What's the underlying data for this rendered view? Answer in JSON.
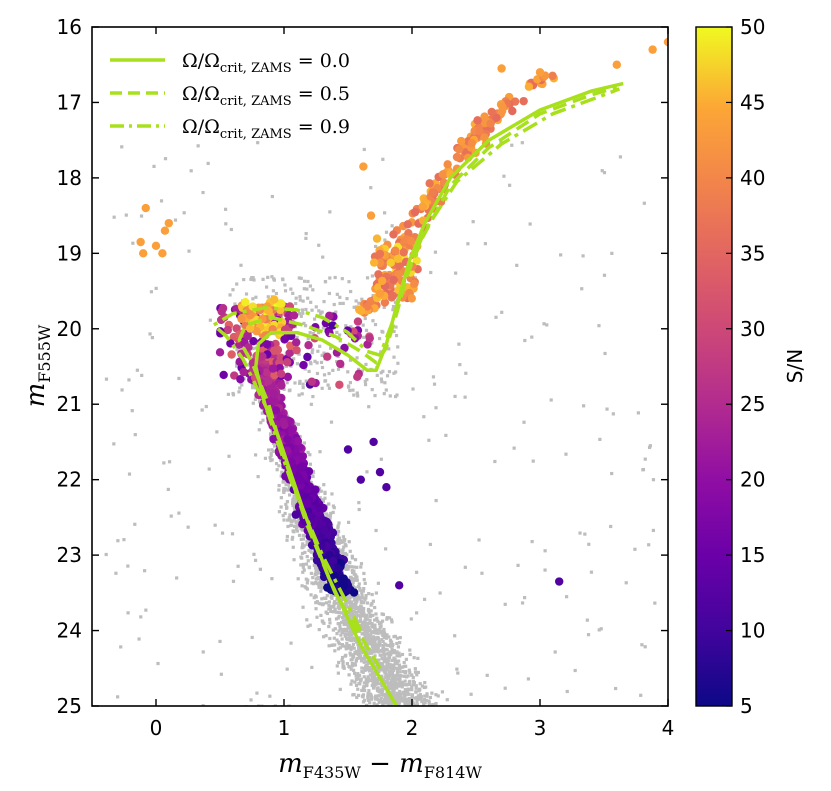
{
  "chart_data": {
    "type": "scatter",
    "xlabel_main": "m",
    "xlabel_sub": "F435W",
    "xlabel_minus": " − ",
    "xlabel_main2": "m",
    "xlabel_sub2": "F814W",
    "ylabel_main": "m",
    "ylabel_sub": "F555W",
    "xlim": [
      -0.5,
      4.0
    ],
    "ylim": [
      25,
      16
    ],
    "xticks": [
      0,
      1,
      2,
      3,
      4
    ],
    "yticks": [
      16,
      17,
      18,
      19,
      20,
      21,
      22,
      23,
      24,
      25
    ],
    "xtick_labels": [
      "0",
      "1",
      "2",
      "3",
      "4"
    ],
    "ytick_labels": [
      "16",
      "17",
      "18",
      "19",
      "20",
      "21",
      "22",
      "23",
      "24",
      "25"
    ],
    "colorbar": {
      "label": "S/N",
      "range": [
        5,
        50
      ],
      "ticks": [
        5,
        10,
        15,
        20,
        25,
        30,
        35,
        40,
        45,
        50
      ],
      "tick_labels": [
        "5",
        "10",
        "15",
        "20",
        "25",
        "30",
        "35",
        "40",
        "45",
        "50"
      ],
      "colormap": "plasma"
    },
    "legend": {
      "placement": "top-left",
      "entries": [
        {
          "label": "Ω/Ω",
          "sub": "crit, ZAMS",
          "value": " = 0.0",
          "style": "solid"
        },
        {
          "label": "Ω/Ω",
          "sub": "crit, ZAMS",
          "value": " = 0.5",
          "style": "dashed"
        },
        {
          "label": "Ω/Ω",
          "sub": "crit, ZAMS",
          "value": " = 0.9",
          "style": "dashdot"
        }
      ]
    },
    "isochrone_color": "#a8e01c",
    "background_color": "#bdbdbd",
    "series": [
      {
        "name": "Ω/Ω_crit,ZAMS = 0.0",
        "style": "solid",
        "points": [
          [
            1.88,
            25.0
          ],
          [
            1.6,
            24.2
          ],
          [
            1.35,
            23.3
          ],
          [
            1.15,
            22.4
          ],
          [
            0.95,
            21.4
          ],
          [
            0.85,
            21.0
          ],
          [
            0.78,
            20.5
          ],
          [
            0.8,
            20.2
          ],
          [
            0.9,
            20.05
          ],
          [
            1.1,
            20.05
          ],
          [
            1.3,
            20.15
          ],
          [
            1.5,
            20.35
          ],
          [
            1.65,
            20.55
          ],
          [
            1.72,
            20.55
          ],
          [
            1.8,
            20.2
          ],
          [
            1.88,
            19.7
          ],
          [
            1.98,
            19.1
          ],
          [
            2.1,
            18.6
          ],
          [
            2.3,
            18.0
          ],
          [
            2.6,
            17.5
          ],
          [
            3.0,
            17.1
          ],
          [
            3.4,
            16.85
          ],
          [
            3.65,
            16.75
          ]
        ]
      },
      {
        "name": "Ω/Ω_crit,ZAMS = 0.5",
        "style": "dashed",
        "points": [
          [
            1.75,
            24.5
          ],
          [
            1.4,
            23.5
          ],
          [
            1.18,
            22.6
          ],
          [
            1.0,
            21.7
          ],
          [
            0.88,
            21.0
          ],
          [
            0.75,
            20.45
          ],
          [
            0.65,
            20.15
          ],
          [
            0.7,
            19.95
          ],
          [
            0.9,
            19.85
          ],
          [
            1.15,
            19.95
          ],
          [
            1.4,
            20.1
          ],
          [
            1.6,
            20.3
          ],
          [
            1.72,
            20.45
          ],
          [
            1.8,
            20.25
          ],
          [
            1.88,
            19.8
          ],
          [
            1.96,
            19.3
          ],
          [
            2.08,
            18.8
          ],
          [
            2.3,
            18.1
          ],
          [
            2.6,
            17.6
          ],
          [
            3.0,
            17.15
          ],
          [
            3.4,
            16.9
          ],
          [
            3.6,
            16.8
          ]
        ]
      },
      {
        "name": "Ω/Ω_crit,ZAMS = 0.9",
        "style": "dashdot",
        "points": [
          [
            1.6,
            24.0
          ],
          [
            1.3,
            23.0
          ],
          [
            1.05,
            22.0
          ],
          [
            0.85,
            21.0
          ],
          [
            0.68,
            20.4
          ],
          [
            0.55,
            20.1
          ],
          [
            0.45,
            19.95
          ],
          [
            0.6,
            19.8
          ],
          [
            0.85,
            19.72
          ],
          [
            1.1,
            19.75
          ],
          [
            1.3,
            19.85
          ],
          [
            1.5,
            20.05
          ],
          [
            1.65,
            20.3
          ],
          [
            1.75,
            20.35
          ],
          [
            1.85,
            19.9
          ],
          [
            1.95,
            19.3
          ],
          [
            2.1,
            18.7
          ],
          [
            2.35,
            18.05
          ],
          [
            2.7,
            17.55
          ],
          [
            3.1,
            17.15
          ],
          [
            3.5,
            16.9
          ],
          [
            3.62,
            16.82
          ]
        ]
      }
    ]
  }
}
